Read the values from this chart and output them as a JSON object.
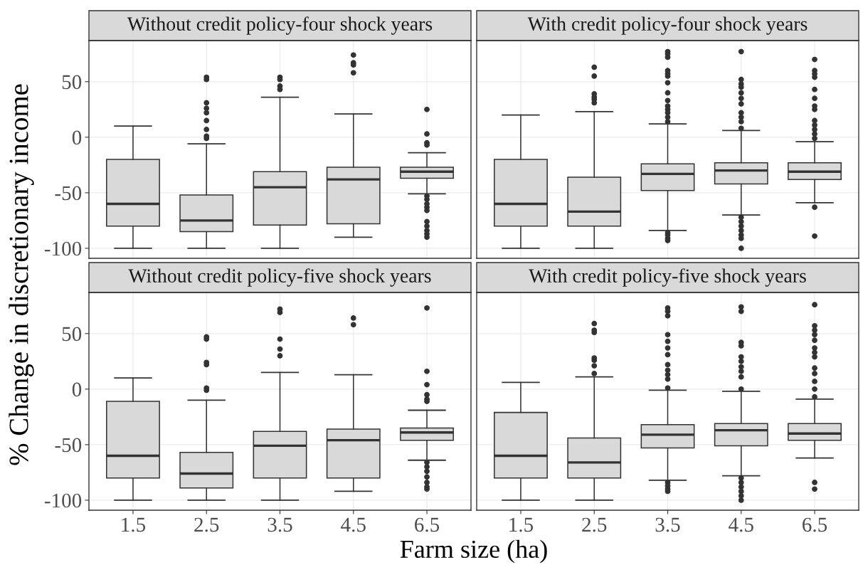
{
  "chart_data": [
    {
      "type": "box",
      "title": "Without credit policy-four shock years",
      "ylabel": "% Change in discretionary income",
      "categories": [
        "1.5",
        "2.5",
        "3.5",
        "4.5",
        "6.5"
      ],
      "color": "#d9d9d9",
      "ylim": [
        -109,
        87
      ],
      "yticks": [
        -100,
        -50,
        0,
        50
      ],
      "grid": true,
      "tick_labels": "y",
      "boxes": [
        {
          "low": -100,
          "q1": -80,
          "median": -60,
          "q3": -20,
          "high": 10
        },
        {
          "low": -100,
          "q1": -85,
          "median": -75,
          "q3": -52,
          "high": -6,
          "outliers": [
            54,
            52,
            31,
            26,
            22,
            15,
            7,
            1,
            -1
          ]
        },
        {
          "low": -100,
          "q1": -79,
          "median": -45,
          "q3": -31,
          "high": 36,
          "outliers": [
            54,
            52,
            46,
            43
          ]
        },
        {
          "low": -90,
          "q1": -78,
          "median": -38,
          "q3": -27,
          "high": 21,
          "outliers": [
            74,
            67,
            65,
            58
          ]
        },
        {
          "low": -51,
          "q1": -37,
          "median": -31,
          "q3": -27,
          "high": -14,
          "outliers": [
            25,
            3,
            -5,
            -7,
            -53,
            -56,
            -60,
            -63,
            -66,
            -76,
            -80,
            -84,
            -87,
            -90
          ]
        }
      ]
    },
    {
      "type": "box",
      "title": "With credit policy-four shock years",
      "categories": [
        "1.5",
        "2.5",
        "3.5",
        "4.5",
        "6.5"
      ],
      "color": "#d9d9d9",
      "ylim": [
        -109,
        87
      ],
      "yticks": [
        -100,
        -50,
        0,
        50
      ],
      "grid": true,
      "tick_labels": false,
      "boxes": [
        {
          "low": -100,
          "q1": -80,
          "median": -60,
          "q3": -20,
          "high": 20
        },
        {
          "low": -100,
          "q1": -80,
          "median": -67,
          "q3": -36,
          "high": 23,
          "outliers": [
            63,
            55,
            39,
            36,
            34,
            31
          ]
        },
        {
          "low": -84,
          "q1": -48,
          "median": -33,
          "q3": -24,
          "high": 12,
          "outliers": [
            77,
            75,
            72,
            60,
            57,
            55,
            49,
            40,
            33,
            28,
            25,
            22,
            18,
            14,
            -86,
            -88,
            -91,
            -93
          ]
        },
        {
          "low": -70,
          "q1": -42,
          "median": -30,
          "q3": -23,
          "high": 6,
          "outliers": [
            77,
            52,
            48,
            45,
            40,
            35,
            30,
            22,
            18,
            14,
            8,
            -72,
            -76,
            -80,
            -84,
            -88,
            -91,
            -100
          ]
        },
        {
          "low": -59,
          "q1": -38,
          "median": -31,
          "q3": -23,
          "high": -4,
          "outliers": [
            70,
            60,
            57,
            54,
            43,
            35,
            28,
            25,
            15,
            11,
            7,
            3,
            -1,
            -63,
            -89
          ]
        }
      ]
    },
    {
      "type": "box",
      "title": "Without credit policy-five shock years",
      "xlabel": "Farm size (ha)",
      "categories": [
        "1.5",
        "2.5",
        "3.5",
        "4.5",
        "6.5"
      ],
      "color": "#d9d9d9",
      "ylim": [
        -109,
        87
      ],
      "yticks": [
        -100,
        -50,
        0,
        50
      ],
      "grid": true,
      "boxes": [
        {
          "low": -100,
          "q1": -80,
          "median": -60,
          "q3": -11,
          "high": 10
        },
        {
          "low": -100,
          "q1": -89,
          "median": -76,
          "q3": -57,
          "high": -10,
          "outliers": [
            47,
            45,
            24,
            22,
            1,
            -1
          ]
        },
        {
          "low": -100,
          "q1": -80,
          "median": -51,
          "q3": -38,
          "high": 15,
          "outliers": [
            72,
            69,
            45,
            36,
            30
          ]
        },
        {
          "low": -92,
          "q1": -80,
          "median": -46,
          "q3": -36,
          "high": 13,
          "outliers": [
            64,
            58
          ]
        },
        {
          "low": -64,
          "q1": -46,
          "median": -39,
          "q3": -35,
          "high": -19,
          "outliers": [
            73,
            16,
            4,
            -5,
            -9,
            -11,
            -66,
            -70,
            -74,
            -79,
            -84,
            -88,
            -90
          ]
        }
      ]
    },
    {
      "type": "box",
      "title": "With credit policy-five shock years",
      "categories": [
        "1.5",
        "2.5",
        "3.5",
        "4.5",
        "6.5"
      ],
      "color": "#d9d9d9",
      "ylim": [
        -109,
        87
      ],
      "yticks": [
        -100,
        -50,
        0,
        50
      ],
      "grid": true,
      "tick_labels": "x",
      "boxes": [
        {
          "low": -100,
          "q1": -80,
          "median": -60,
          "q3": -21,
          "high": 6
        },
        {
          "low": -100,
          "q1": -80,
          "median": -66,
          "q3": -44,
          "high": 11,
          "outliers": [
            59,
            53,
            51,
            28,
            26,
            21,
            14
          ]
        },
        {
          "low": -82,
          "q1": -53,
          "median": -41,
          "q3": -32,
          "high": -1,
          "outliers": [
            73,
            70,
            66,
            49,
            43,
            37,
            31,
            22,
            17,
            13,
            9,
            1,
            -84,
            -87,
            -90,
            -92
          ]
        },
        {
          "low": -78,
          "q1": -51,
          "median": -37,
          "q3": -31,
          "high": -2,
          "outliers": [
            74,
            70,
            42,
            39,
            29,
            25,
            20,
            16,
            11,
            0,
            -80,
            -84,
            -88,
            -92,
            -96,
            -100
          ]
        },
        {
          "low": -62,
          "q1": -46,
          "median": -40,
          "q3": -31,
          "high": -9,
          "outliers": [
            76,
            57,
            53,
            49,
            44,
            37,
            33,
            29,
            19,
            14,
            7,
            0,
            -7,
            -84,
            -90
          ]
        }
      ]
    }
  ]
}
